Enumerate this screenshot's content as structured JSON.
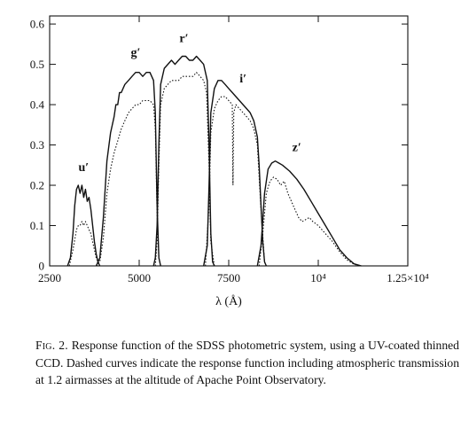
{
  "chart_data": {
    "type": "line",
    "title": "",
    "xlabel": "λ (Å)",
    "ylabel": "",
    "xlim": [
      2500,
      12500
    ],
    "ylim": [
      0,
      0.62
    ],
    "xticks": [
      {
        "value": 2500,
        "label": "2500"
      },
      {
        "value": 5000,
        "label": "5000"
      },
      {
        "value": 7500,
        "label": "7500"
      },
      {
        "value": 10000,
        "label": "10⁴"
      },
      {
        "value": 12500,
        "label": "1.25×10⁴"
      }
    ],
    "yticks": [
      {
        "value": 0,
        "label": "0"
      },
      {
        "value": 0.1,
        "label": "0.1"
      },
      {
        "value": 0.2,
        "label": "0.2"
      },
      {
        "value": 0.3,
        "label": "0.3"
      },
      {
        "value": 0.4,
        "label": "0.4"
      },
      {
        "value": 0.5,
        "label": "0.5"
      },
      {
        "value": 0.6,
        "label": "0.6"
      }
    ],
    "series": [
      {
        "name": "u′",
        "style": "solid",
        "points": [
          [
            3000,
            0
          ],
          [
            3080,
            0.02
          ],
          [
            3150,
            0.08
          ],
          [
            3200,
            0.15
          ],
          [
            3250,
            0.19
          ],
          [
            3300,
            0.2
          ],
          [
            3350,
            0.18
          ],
          [
            3400,
            0.2
          ],
          [
            3450,
            0.17
          ],
          [
            3500,
            0.19
          ],
          [
            3550,
            0.16
          ],
          [
            3600,
            0.17
          ],
          [
            3650,
            0.14
          ],
          [
            3700,
            0.1
          ],
          [
            3750,
            0.06
          ],
          [
            3800,
            0.03
          ],
          [
            3850,
            0.01
          ],
          [
            3900,
            0
          ]
        ]
      },
      {
        "name": "u′",
        "style": "dotted",
        "points": [
          [
            3050,
            0
          ],
          [
            3150,
            0.04
          ],
          [
            3250,
            0.09
          ],
          [
            3300,
            0.1
          ],
          [
            3350,
            0.1
          ],
          [
            3400,
            0.11
          ],
          [
            3450,
            0.1
          ],
          [
            3500,
            0.11
          ],
          [
            3550,
            0.1
          ],
          [
            3600,
            0.09
          ],
          [
            3650,
            0.08
          ],
          [
            3700,
            0.06
          ],
          [
            3800,
            0.02
          ],
          [
            3900,
            0
          ]
        ]
      },
      {
        "name": "g′",
        "style": "solid",
        "points": [
          [
            3800,
            0
          ],
          [
            3900,
            0.02
          ],
          [
            4000,
            0.12
          ],
          [
            4100,
            0.26
          ],
          [
            4200,
            0.33
          ],
          [
            4300,
            0.37
          ],
          [
            4350,
            0.4
          ],
          [
            4400,
            0.4
          ],
          [
            4450,
            0.43
          ],
          [
            4500,
            0.43
          ],
          [
            4600,
            0.45
          ],
          [
            4700,
            0.46
          ],
          [
            4800,
            0.47
          ],
          [
            4900,
            0.48
          ],
          [
            5000,
            0.48
          ],
          [
            5100,
            0.47
          ],
          [
            5200,
            0.48
          ],
          [
            5300,
            0.48
          ],
          [
            5400,
            0.46
          ],
          [
            5450,
            0.38
          ],
          [
            5500,
            0.15
          ],
          [
            5550,
            0.02
          ],
          [
            5600,
            0
          ]
        ]
      },
      {
        "name": "g′",
        "style": "dotted",
        "points": [
          [
            3800,
            0
          ],
          [
            3900,
            0.01
          ],
          [
            4000,
            0.07
          ],
          [
            4100,
            0.18
          ],
          [
            4200,
            0.24
          ],
          [
            4300,
            0.28
          ],
          [
            4400,
            0.31
          ],
          [
            4500,
            0.34
          ],
          [
            4600,
            0.36
          ],
          [
            4700,
            0.38
          ],
          [
            4800,
            0.39
          ],
          [
            4900,
            0.4
          ],
          [
            5000,
            0.4
          ],
          [
            5100,
            0.41
          ],
          [
            5200,
            0.41
          ],
          [
            5300,
            0.41
          ],
          [
            5400,
            0.4
          ],
          [
            5450,
            0.34
          ],
          [
            5500,
            0.13
          ],
          [
            5550,
            0.02
          ],
          [
            5600,
            0
          ]
        ]
      },
      {
        "name": "r′",
        "style": "solid",
        "points": [
          [
            5400,
            0
          ],
          [
            5450,
            0.02
          ],
          [
            5500,
            0.1
          ],
          [
            5550,
            0.3
          ],
          [
            5600,
            0.45
          ],
          [
            5700,
            0.49
          ],
          [
            5800,
            0.5
          ],
          [
            5900,
            0.51
          ],
          [
            6000,
            0.5
          ],
          [
            6100,
            0.51
          ],
          [
            6200,
            0.52
          ],
          [
            6300,
            0.52
          ],
          [
            6400,
            0.51
          ],
          [
            6500,
            0.51
          ],
          [
            6600,
            0.52
          ],
          [
            6700,
            0.51
          ],
          [
            6800,
            0.5
          ],
          [
            6900,
            0.46
          ],
          [
            6950,
            0.3
          ],
          [
            7000,
            0.08
          ],
          [
            7050,
            0.01
          ],
          [
            7100,
            0
          ]
        ]
      },
      {
        "name": "r′",
        "style": "dotted",
        "points": [
          [
            5450,
            0
          ],
          [
            5500,
            0.06
          ],
          [
            5550,
            0.25
          ],
          [
            5600,
            0.4
          ],
          [
            5700,
            0.44
          ],
          [
            5800,
            0.45
          ],
          [
            5900,
            0.46
          ],
          [
            6000,
            0.46
          ],
          [
            6100,
            0.46
          ],
          [
            6200,
            0.47
          ],
          [
            6300,
            0.47
          ],
          [
            6400,
            0.47
          ],
          [
            6500,
            0.47
          ],
          [
            6600,
            0.48
          ],
          [
            6700,
            0.47
          ],
          [
            6800,
            0.46
          ],
          [
            6880,
            0.43
          ],
          [
            6950,
            0.25
          ],
          [
            7000,
            0.06
          ],
          [
            7100,
            0
          ]
        ]
      },
      {
        "name": "i′",
        "style": "solid",
        "points": [
          [
            6800,
            0
          ],
          [
            6900,
            0.05
          ],
          [
            6950,
            0.2
          ],
          [
            7000,
            0.38
          ],
          [
            7100,
            0.44
          ],
          [
            7200,
            0.46
          ],
          [
            7300,
            0.46
          ],
          [
            7400,
            0.45
          ],
          [
            7500,
            0.44
          ],
          [
            7600,
            0.43
          ],
          [
            7700,
            0.42
          ],
          [
            7800,
            0.41
          ],
          [
            7900,
            0.4
          ],
          [
            8000,
            0.39
          ],
          [
            8100,
            0.38
          ],
          [
            8200,
            0.36
          ],
          [
            8300,
            0.32
          ],
          [
            8350,
            0.25
          ],
          [
            8400,
            0.15
          ],
          [
            8450,
            0.06
          ],
          [
            8500,
            0.01
          ],
          [
            8550,
            0
          ]
        ]
      },
      {
        "name": "i′",
        "style": "dotted",
        "points": [
          [
            6850,
            0
          ],
          [
            6950,
            0.15
          ],
          [
            7000,
            0.33
          ],
          [
            7100,
            0.39
          ],
          [
            7200,
            0.41
          ],
          [
            7300,
            0.42
          ],
          [
            7400,
            0.42
          ],
          [
            7500,
            0.41
          ],
          [
            7600,
            0.4
          ],
          [
            7620,
            0.2
          ],
          [
            7640,
            0.38
          ],
          [
            7700,
            0.4
          ],
          [
            7800,
            0.39
          ],
          [
            7900,
            0.38
          ],
          [
            8000,
            0.37
          ],
          [
            8100,
            0.36
          ],
          [
            8200,
            0.34
          ],
          [
            8300,
            0.3
          ],
          [
            8400,
            0.14
          ],
          [
            8500,
            0.01
          ],
          [
            8550,
            0
          ]
        ]
      },
      {
        "name": "z′",
        "style": "solid",
        "points": [
          [
            8300,
            0
          ],
          [
            8400,
            0.05
          ],
          [
            8500,
            0.18
          ],
          [
            8600,
            0.24
          ],
          [
            8700,
            0.255
          ],
          [
            8800,
            0.26
          ],
          [
            8900,
            0.255
          ],
          [
            9000,
            0.25
          ],
          [
            9200,
            0.235
          ],
          [
            9400,
            0.215
          ],
          [
            9600,
            0.19
          ],
          [
            9800,
            0.16
          ],
          [
            10000,
            0.13
          ],
          [
            10200,
            0.1
          ],
          [
            10400,
            0.07
          ],
          [
            10600,
            0.04
          ],
          [
            10800,
            0.02
          ],
          [
            11000,
            0.005
          ],
          [
            11200,
            0
          ]
        ]
      },
      {
        "name": "z′",
        "style": "dotted",
        "points": [
          [
            8350,
            0
          ],
          [
            8450,
            0.08
          ],
          [
            8550,
            0.18
          ],
          [
            8650,
            0.21
          ],
          [
            8750,
            0.22
          ],
          [
            8850,
            0.215
          ],
          [
            8950,
            0.2
          ],
          [
            9050,
            0.21
          ],
          [
            9150,
            0.18
          ],
          [
            9250,
            0.16
          ],
          [
            9350,
            0.14
          ],
          [
            9450,
            0.12
          ],
          [
            9550,
            0.11
          ],
          [
            9650,
            0.115
          ],
          [
            9750,
            0.12
          ],
          [
            9850,
            0.11
          ],
          [
            10000,
            0.1
          ],
          [
            10200,
            0.08
          ],
          [
            10400,
            0.06
          ],
          [
            10600,
            0.035
          ],
          [
            10800,
            0.015
          ],
          [
            11000,
            0.004
          ],
          [
            11200,
            0
          ]
        ]
      }
    ],
    "band_labels": [
      {
        "text": "u′",
        "x": 3450,
        "y": 0.235
      },
      {
        "text": "g′",
        "x": 4900,
        "y": 0.52
      },
      {
        "text": "r′",
        "x": 6250,
        "y": 0.555
      },
      {
        "text": "i′",
        "x": 7900,
        "y": 0.455
      },
      {
        "text": "z′",
        "x": 9400,
        "y": 0.285
      }
    ]
  },
  "caption": {
    "label": "Fig. 2.",
    "text": "Response function of the SDSS photometric system, using a UV-coated thinned CCD. Dashed curves indicate the response function including atmospheric transmission at 1.2 airmasses at the altitude of Apache Point Observatory."
  }
}
